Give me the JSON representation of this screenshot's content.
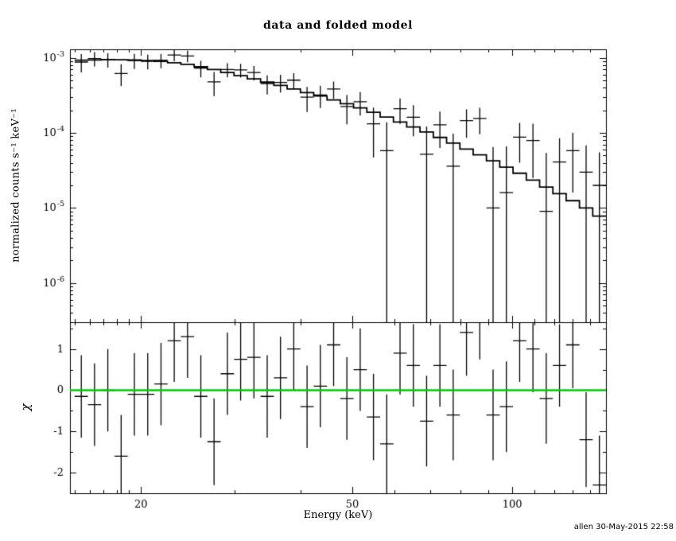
{
  "page": {
    "title": "data and folded model",
    "xlabel": "Energy (keV)",
    "ylabel_top": "normalized counts s⁻¹ keV⁻¹",
    "ylabel_bottom": "χ",
    "signature": "allen 30-May-2015 22:58"
  },
  "colors": {
    "foreground": "#000000",
    "background": "#ffffff",
    "model_line": "#000000",
    "data_marks": "#000000",
    "zero_line": "#00cc00"
  },
  "chart_data": [
    {
      "type": "scatter",
      "panel": "spectrum",
      "title": "data and folded model",
      "xlabel": "Energy (keV)",
      "ylabel": "normalized counts s⁻¹ keV⁻¹",
      "xscale": "log",
      "yscale": "log",
      "grid": false,
      "legend": "none",
      "xlim": [
        14.7,
        150.1
      ],
      "ylim": [
        3e-07,
        0.0013
      ],
      "xticks_major": [
        20,
        50,
        100
      ],
      "xticks_minor": [
        15,
        16,
        17,
        18,
        19,
        30,
        40,
        60,
        70,
        80,
        90,
        110,
        120,
        130,
        140,
        150
      ],
      "yticks_major": [
        {
          "base": "10",
          "exp": "-3",
          "value": 0.001
        },
        {
          "base": "10",
          "exp": "-4",
          "value": 0.0001
        },
        {
          "base": "10",
          "exp": "-5",
          "value": 1e-05
        },
        {
          "base": "10",
          "exp": "-6",
          "value": 1e-06
        }
      ],
      "bin_edges": [
        15.0,
        15.89,
        16.83,
        17.83,
        18.88,
        20.0,
        21.19,
        22.44,
        23.77,
        25.18,
        26.67,
        28.25,
        29.93,
        31.7,
        33.58,
        35.57,
        37.68,
        39.91,
        42.28,
        44.79,
        47.44,
        50.25,
        53.23,
        56.39,
        59.73,
        63.27,
        67.02,
        71.0,
        75.21,
        79.67,
        84.39,
        89.39,
        94.69,
        100.31,
        106.25,
        112.55,
        119.22,
        126.29,
        133.78,
        141.71,
        150.11
      ],
      "model": [
        0.00093,
        0.00094,
        0.00095,
        0.000945,
        0.000935,
        0.00092,
        0.0009,
        0.00086,
        0.00082,
        0.00076,
        0.0007,
        0.00064,
        0.00058,
        0.000525,
        0.000475,
        0.00043,
        0.000385,
        0.000345,
        0.00031,
        0.000275,
        0.000245,
        0.000215,
        0.000188,
        0.000163,
        0.00014,
        0.00012,
        0.000103,
        8.7e-05,
        7.3e-05,
        6.1e-05,
        5.1e-05,
        4.25e-05,
        3.5e-05,
        2.9e-05,
        2.35e-05,
        1.9e-05,
        1.55e-05,
        1.25e-05,
        1e-05,
        7.8e-06
      ],
      "data": {
        "x": [
          15.44,
          16.35,
          17.32,
          18.35,
          19.43,
          20.59,
          21.81,
          23.1,
          24.47,
          25.92,
          27.45,
          29.08,
          30.8,
          32.63,
          34.56,
          36.61,
          38.78,
          41.08,
          43.51,
          46.09,
          48.82,
          51.72,
          54.78,
          58.03,
          61.47,
          65.12,
          68.97,
          73.06,
          77.39,
          81.99,
          86.85,
          92.0,
          97.46,
          103.24,
          109.36,
          115.84,
          122.71,
          129.99,
          137.7,
          145.86
        ],
        "y": [
          0.00088,
          0.00098,
          0.00095,
          0.00062,
          0.00092,
          0.0009,
          0.00093,
          0.00109,
          0.00106,
          0.00073,
          0.00048,
          0.0007,
          0.00069,
          0.00064,
          0.000455,
          0.00047,
          0.000505,
          0.0003,
          0.00032,
          0.000385,
          0.000225,
          0.00026,
          0.000132,
          5.8e-05,
          0.00021,
          0.000162,
          5.2e-05,
          0.000128,
          3.6e-05,
          0.000146,
          0.000156,
          1e-05,
          1.6e-05,
          8.8e-05,
          7.9e-05,
          9e-06,
          4.1e-05,
          5.8e-05,
          3e-05,
          2e-05
        ],
        "yerr": [
          0.00024,
          0.00021,
          0.00021,
          0.0002,
          0.00021,
          0.0002,
          0.0002,
          0.00019,
          0.000185,
          0.00018,
          0.00017,
          0.00015,
          0.000145,
          0.00014,
          0.00013,
          0.000125,
          0.00012,
          0.00011,
          0.000105,
          0.0001,
          9.5e-05,
          9e-05,
          8.5e-05,
          8e-05,
          7.8e-05,
          7.2e-05,
          7e-05,
          6.5e-05,
          6.2e-05,
          6e-05,
          6e-05,
          5.5e-05,
          5e-05,
          4.8e-05,
          5.4e-05,
          4.5e-05,
          4.4e-05,
          4.2e-05,
          3.8e-05,
          3.5e-05
        ]
      }
    },
    {
      "type": "scatter",
      "panel": "residuals",
      "ylabel": "χ",
      "xscale": "log",
      "yscale": "linear",
      "grid": false,
      "legend": "none",
      "xlim": [
        14.7,
        150.1
      ],
      "ylim": [
        -2.5,
        1.65
      ],
      "yticks_major": [
        -2,
        -1,
        0,
        1
      ],
      "yticks_minor": [
        -1.5,
        -0.5,
        0.5,
        1.5
      ],
      "zero_line": {
        "y": 0,
        "color": "#00cc00"
      },
      "data": {
        "x": [
          15.44,
          16.35,
          17.32,
          18.35,
          19.43,
          20.59,
          21.81,
          23.1,
          24.47,
          25.92,
          27.45,
          29.08,
          30.8,
          32.63,
          34.56,
          36.61,
          38.78,
          41.08,
          43.51,
          46.09,
          48.82,
          51.72,
          54.78,
          58.03,
          61.47,
          65.12,
          68.97,
          73.06,
          77.39,
          81.99,
          86.85,
          92.0,
          97.46,
          103.24,
          109.36,
          115.84,
          122.71,
          129.99,
          137.7,
          145.86
        ],
        "chi": [
          -0.15,
          -0.35,
          0.0,
          -1.6,
          -0.1,
          -0.1,
          0.15,
          1.2,
          1.3,
          -0.15,
          -1.25,
          0.4,
          0.75,
          0.8,
          -0.15,
          0.3,
          1.0,
          -0.4,
          0.1,
          1.1,
          -0.2,
          0.5,
          -0.65,
          -1.3,
          0.9,
          0.6,
          -0.75,
          0.6,
          -0.6,
          1.4,
          1.75,
          -0.6,
          -0.4,
          1.2,
          1.0,
          -0.2,
          0.6,
          1.1,
          -1.2,
          -2.3
        ],
        "err": [
          1.0,
          1.0,
          1.0,
          1.0,
          1.0,
          1.0,
          1.0,
          1.0,
          1.0,
          1.0,
          1.05,
          1.0,
          1.0,
          1.0,
          1.0,
          1.0,
          1.0,
          1.0,
          1.0,
          1.0,
          1.0,
          1.0,
          1.05,
          1.2,
          1.0,
          1.0,
          1.1,
          1.0,
          1.1,
          1.05,
          1.0,
          1.1,
          1.1,
          1.0,
          1.05,
          1.1,
          1.0,
          1.05,
          1.15,
          1.2
        ]
      }
    }
  ]
}
